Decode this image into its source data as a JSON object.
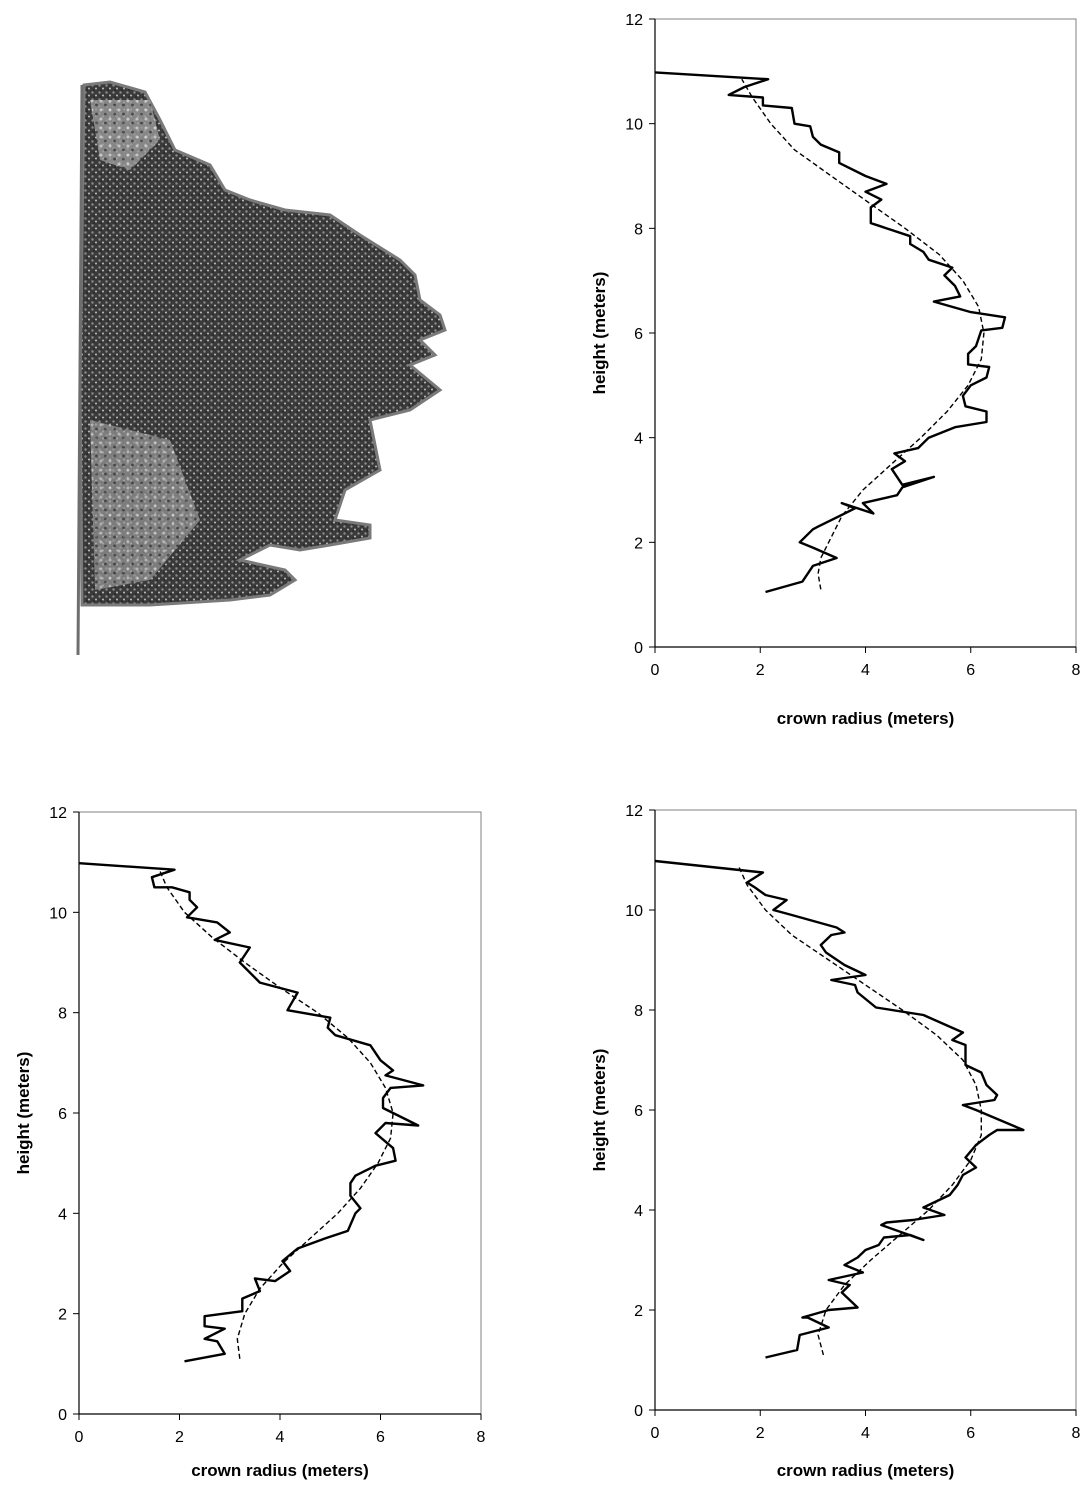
{
  "image": {
    "subject": "tree-crown-silhouette"
  },
  "chart_data": [
    {
      "type": "line",
      "xlabel": "crown radius (meters)",
      "ylabel": "height (meters)",
      "xlim": [
        0,
        8
      ],
      "ylim": [
        0,
        12
      ],
      "xticks": [
        "0",
        "2",
        "4",
        "6",
        "8"
      ],
      "yticks": [
        "0",
        "2",
        "4",
        "6",
        "8",
        "10",
        "12"
      ],
      "grid": false,
      "legend": "none",
      "series": [
        {
          "style": "solid",
          "points": [
            [
              2.1,
              1.05
            ],
            [
              2.8,
              1.25
            ],
            [
              3.0,
              1.55
            ],
            [
              3.45,
              1.7
            ],
            [
              3.0,
              1.9
            ],
            [
              2.75,
              2.0
            ],
            [
              3.0,
              2.25
            ],
            [
              3.1,
              2.3
            ],
            [
              3.5,
              2.5
            ],
            [
              3.8,
              2.65
            ],
            [
              3.55,
              2.75
            ],
            [
              4.15,
              2.55
            ],
            [
              3.95,
              2.75
            ],
            [
              4.6,
              2.9
            ],
            [
              4.7,
              3.05
            ],
            [
              5.3,
              3.25
            ],
            [
              4.7,
              3.1
            ],
            [
              4.5,
              3.4
            ],
            [
              4.75,
              3.55
            ],
            [
              4.55,
              3.7
            ],
            [
              5.0,
              3.8
            ],
            [
              5.2,
              4.0
            ],
            [
              5.7,
              4.2
            ],
            [
              6.3,
              4.3
            ],
            [
              6.3,
              4.5
            ],
            [
              5.9,
              4.6
            ],
            [
              5.85,
              4.8
            ],
            [
              6.0,
              5.0
            ],
            [
              6.3,
              5.15
            ],
            [
              6.35,
              5.35
            ],
            [
              5.95,
              5.4
            ],
            [
              5.95,
              5.6
            ],
            [
              6.1,
              5.75
            ],
            [
              6.2,
              6.05
            ],
            [
              6.6,
              6.1
            ],
            [
              6.65,
              6.3
            ],
            [
              6.0,
              6.4
            ],
            [
              5.3,
              6.6
            ],
            [
              5.8,
              6.7
            ],
            [
              5.7,
              6.9
            ],
            [
              5.5,
              7.1
            ],
            [
              5.65,
              7.25
            ],
            [
              5.2,
              7.4
            ],
            [
              5.1,
              7.55
            ],
            [
              4.85,
              7.7
            ],
            [
              4.85,
              7.85
            ],
            [
              4.25,
              8.05
            ],
            [
              4.1,
              8.1
            ],
            [
              4.1,
              8.4
            ],
            [
              4.3,
              8.55
            ],
            [
              4.0,
              8.7
            ],
            [
              4.4,
              8.85
            ],
            [
              4.0,
              9.0
            ],
            [
              3.5,
              9.25
            ],
            [
              3.5,
              9.45
            ],
            [
              3.15,
              9.6
            ],
            [
              3.0,
              9.75
            ],
            [
              2.95,
              9.95
            ],
            [
              2.65,
              10.0
            ],
            [
              2.6,
              10.3
            ],
            [
              2.05,
              10.35
            ],
            [
              2.05,
              10.5
            ],
            [
              1.4,
              10.55
            ],
            [
              1.7,
              10.7
            ],
            [
              2.15,
              10.85
            ],
            [
              0.0,
              10.98
            ]
          ]
        },
        {
          "style": "dashed",
          "points": [
            [
              3.15,
              1.1
            ],
            [
              3.1,
              1.4
            ],
            [
              3.15,
              1.7
            ],
            [
              3.3,
              2.0
            ],
            [
              3.55,
              2.5
            ],
            [
              3.95,
              3.0
            ],
            [
              4.5,
              3.5
            ],
            [
              5.05,
              4.0
            ],
            [
              5.55,
              4.5
            ],
            [
              5.95,
              5.0
            ],
            [
              6.2,
              5.5
            ],
            [
              6.25,
              6.0
            ],
            [
              6.15,
              6.5
            ],
            [
              5.85,
              7.0
            ],
            [
              5.4,
              7.5
            ],
            [
              4.75,
              8.0
            ],
            [
              4.05,
              8.5
            ],
            [
              3.35,
              9.0
            ],
            [
              2.65,
              9.5
            ],
            [
              2.2,
              10.0
            ],
            [
              1.85,
              10.5
            ],
            [
              1.65,
              10.85
            ]
          ]
        }
      ]
    },
    {
      "type": "line",
      "xlabel": "crown radius (meters)",
      "ylabel": "height (meters)",
      "xlim": [
        0,
        8
      ],
      "ylim": [
        0,
        12
      ],
      "xticks": [
        "0",
        "2",
        "4",
        "6",
        "8"
      ],
      "yticks": [
        "0",
        "2",
        "4",
        "6",
        "8",
        "10",
        "12"
      ],
      "grid": false,
      "legend": "none",
      "series": [
        {
          "style": "solid",
          "points": [
            [
              2.1,
              1.05
            ],
            [
              2.9,
              1.2
            ],
            [
              2.75,
              1.45
            ],
            [
              2.5,
              1.5
            ],
            [
              2.9,
              1.7
            ],
            [
              2.5,
              1.75
            ],
            [
              2.5,
              1.95
            ],
            [
              3.25,
              2.05
            ],
            [
              3.25,
              2.3
            ],
            [
              3.6,
              2.45
            ],
            [
              3.5,
              2.7
            ],
            [
              3.9,
              2.65
            ],
            [
              4.2,
              2.85
            ],
            [
              4.05,
              3.05
            ],
            [
              4.35,
              3.3
            ],
            [
              4.9,
              3.5
            ],
            [
              5.35,
              3.65
            ],
            [
              5.5,
              4.0
            ],
            [
              5.6,
              4.1
            ],
            [
              5.4,
              4.35
            ],
            [
              5.4,
              4.6
            ],
            [
              5.5,
              4.75
            ],
            [
              5.9,
              4.95
            ],
            [
              6.3,
              5.05
            ],
            [
              6.25,
              5.3
            ],
            [
              5.9,
              5.6
            ],
            [
              6.1,
              5.8
            ],
            [
              6.75,
              5.75
            ],
            [
              6.05,
              6.1
            ],
            [
              6.05,
              6.3
            ],
            [
              6.2,
              6.5
            ],
            [
              6.85,
              6.55
            ],
            [
              6.1,
              6.75
            ],
            [
              6.25,
              6.85
            ],
            [
              6.0,
              7.05
            ],
            [
              5.8,
              7.35
            ],
            [
              5.1,
              7.55
            ],
            [
              4.95,
              7.7
            ],
            [
              5.0,
              7.9
            ],
            [
              4.15,
              8.05
            ],
            [
              4.35,
              8.4
            ],
            [
              3.6,
              8.6
            ],
            [
              3.2,
              9.0
            ],
            [
              3.4,
              9.3
            ],
            [
              2.7,
              9.45
            ],
            [
              3.0,
              9.6
            ],
            [
              2.75,
              9.8
            ],
            [
              2.15,
              9.9
            ],
            [
              2.35,
              10.1
            ],
            [
              2.2,
              10.25
            ],
            [
              2.2,
              10.4
            ],
            [
              1.85,
              10.5
            ],
            [
              1.5,
              10.5
            ],
            [
              1.45,
              10.7
            ],
            [
              1.9,
              10.85
            ],
            [
              0.0,
              10.98
            ]
          ]
        },
        {
          "style": "dashed",
          "points": [
            [
              3.2,
              1.1
            ],
            [
              3.15,
              1.5
            ],
            [
              3.3,
              2.0
            ],
            [
              3.6,
              2.5
            ],
            [
              4.05,
              3.0
            ],
            [
              4.6,
              3.5
            ],
            [
              5.15,
              4.0
            ],
            [
              5.6,
              4.5
            ],
            [
              5.95,
              5.0
            ],
            [
              6.2,
              5.5
            ],
            [
              6.25,
              6.0
            ],
            [
              6.1,
              6.5
            ],
            [
              5.8,
              7.0
            ],
            [
              5.35,
              7.5
            ],
            [
              4.75,
              8.0
            ],
            [
              4.0,
              8.5
            ],
            [
              3.3,
              9.0
            ],
            [
              2.65,
              9.5
            ],
            [
              2.1,
              10.0
            ],
            [
              1.75,
              10.5
            ],
            [
              1.6,
              10.85
            ]
          ]
        }
      ]
    },
    {
      "type": "line",
      "xlabel": "crown radius (meters)",
      "ylabel": "height (meters)",
      "xlim": [
        0,
        8
      ],
      "ylim": [
        0,
        12
      ],
      "xticks": [
        "0",
        "2",
        "4",
        "6",
        "8"
      ],
      "yticks": [
        "0",
        "2",
        "4",
        "6",
        "8",
        "10",
        "12"
      ],
      "grid": false,
      "legend": "none",
      "series": [
        {
          "style": "solid",
          "points": [
            [
              2.1,
              1.05
            ],
            [
              2.7,
              1.2
            ],
            [
              2.75,
              1.5
            ],
            [
              3.3,
              1.65
            ],
            [
              2.9,
              1.85
            ],
            [
              2.8,
              1.85
            ],
            [
              3.3,
              2.0
            ],
            [
              3.85,
              2.05
            ],
            [
              3.55,
              2.35
            ],
            [
              3.7,
              2.5
            ],
            [
              3.3,
              2.6
            ],
            [
              3.95,
              2.75
            ],
            [
              3.6,
              2.9
            ],
            [
              3.85,
              3.05
            ],
            [
              4.0,
              3.2
            ],
            [
              4.25,
              3.3
            ],
            [
              4.35,
              3.45
            ],
            [
              4.85,
              3.5
            ],
            [
              5.1,
              3.4
            ],
            [
              4.3,
              3.7
            ],
            [
              4.4,
              3.75
            ],
            [
              4.9,
              3.8
            ],
            [
              5.5,
              3.9
            ],
            [
              5.1,
              4.05
            ],
            [
              5.6,
              4.3
            ],
            [
              5.75,
              4.5
            ],
            [
              5.85,
              4.7
            ],
            [
              6.1,
              4.85
            ],
            [
              5.9,
              5.05
            ],
            [
              6.1,
              5.3
            ],
            [
              6.35,
              5.5
            ],
            [
              6.5,
              5.6
            ],
            [
              7.0,
              5.6
            ],
            [
              6.1,
              6.0
            ],
            [
              5.85,
              6.1
            ],
            [
              6.45,
              6.2
            ],
            [
              6.5,
              6.3
            ],
            [
              6.3,
              6.5
            ],
            [
              6.2,
              6.75
            ],
            [
              5.9,
              6.9
            ],
            [
              5.9,
              7.3
            ],
            [
              5.65,
              7.4
            ],
            [
              5.85,
              7.55
            ],
            [
              5.1,
              7.9
            ],
            [
              4.2,
              8.05
            ],
            [
              3.85,
              8.35
            ],
            [
              3.8,
              8.5
            ],
            [
              3.35,
              8.6
            ],
            [
              4.0,
              8.7
            ],
            [
              3.6,
              8.9
            ],
            [
              3.25,
              9.15
            ],
            [
              3.15,
              9.3
            ],
            [
              3.35,
              9.5
            ],
            [
              3.6,
              9.55
            ],
            [
              3.45,
              9.65
            ],
            [
              2.6,
              9.9
            ],
            [
              2.25,
              10.0
            ],
            [
              2.5,
              10.2
            ],
            [
              2.1,
              10.3
            ],
            [
              1.9,
              10.45
            ],
            [
              1.75,
              10.55
            ],
            [
              2.05,
              10.75
            ],
            [
              0.0,
              10.98
            ]
          ]
        },
        {
          "style": "dashed",
          "points": [
            [
              3.2,
              1.1
            ],
            [
              3.1,
              1.5
            ],
            [
              3.25,
              2.0
            ],
            [
              3.6,
              2.5
            ],
            [
              4.1,
              3.0
            ],
            [
              4.65,
              3.5
            ],
            [
              5.2,
              4.0
            ],
            [
              5.65,
              4.5
            ],
            [
              6.0,
              5.0
            ],
            [
              6.2,
              5.5
            ],
            [
              6.2,
              6.0
            ],
            [
              6.1,
              6.5
            ],
            [
              5.85,
              7.0
            ],
            [
              5.35,
              7.5
            ],
            [
              4.7,
              8.0
            ],
            [
              4.0,
              8.5
            ],
            [
              3.3,
              9.0
            ],
            [
              2.6,
              9.5
            ],
            [
              2.1,
              10.0
            ],
            [
              1.75,
              10.5
            ],
            [
              1.6,
              10.85
            ]
          ]
        }
      ]
    }
  ]
}
